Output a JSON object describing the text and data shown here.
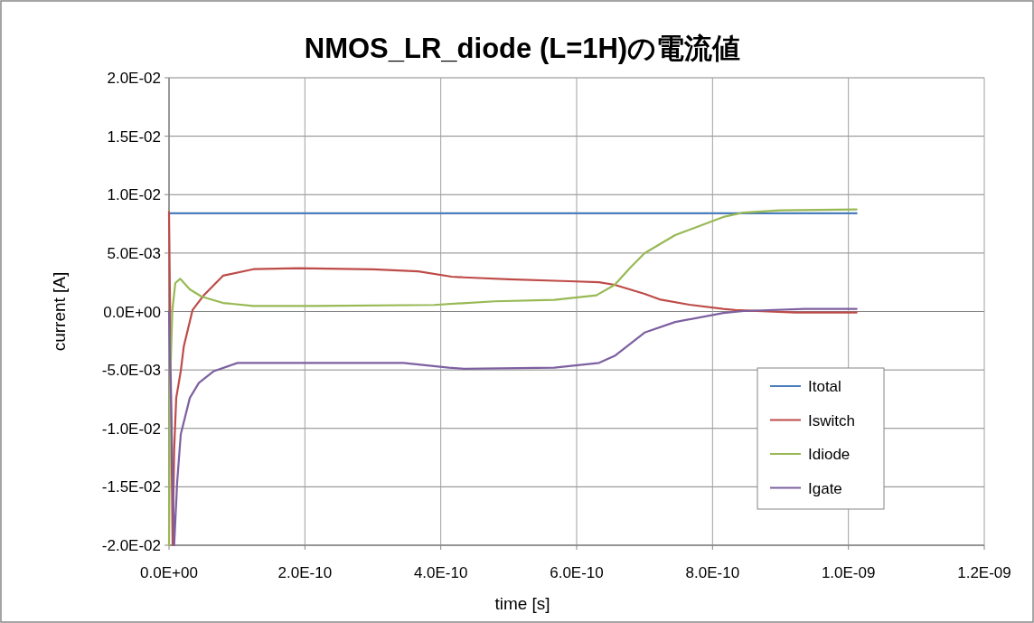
{
  "chart_data": {
    "type": "line",
    "title": "NMOS_LR_diode (L=1H)の電流値",
    "xlabel": "time [s]",
    "ylabel": "current [A]",
    "xlim": [
      0,
      1.2e-09
    ],
    "xticks": [
      {
        "value": 0,
        "label": "0.0E+00"
      },
      {
        "value": 2e-10,
        "label": "2.0E-10"
      },
      {
        "value": 4e-10,
        "label": "4.0E-10"
      },
      {
        "value": 6e-10,
        "label": "6.0E-10"
      },
      {
        "value": 8e-10,
        "label": "8.0E-10"
      },
      {
        "value": 1e-09,
        "label": "1.0E-09"
      },
      {
        "value": 1.2e-09,
        "label": "1.2E-09"
      }
    ],
    "ylim": [
      -0.02,
      0.02
    ],
    "yticks": [
      {
        "value": -0.02,
        "label": "-2.0E-02"
      },
      {
        "value": -0.015,
        "label": "-1.5E-02"
      },
      {
        "value": -0.01,
        "label": "-1.0E-02"
      },
      {
        "value": -0.005,
        "label": "-5.0E-03"
      },
      {
        "value": 0,
        "label": "0.0E+00"
      },
      {
        "value": 0.005,
        "label": "5.0E-03"
      },
      {
        "value": 0.01,
        "label": "1.0E-02"
      },
      {
        "value": 0.015,
        "label": "1.5E-02"
      },
      {
        "value": 0.02,
        "label": "2.0E-02"
      }
    ],
    "grid": true,
    "legend": "bottom right",
    "series": [
      {
        "name": "Itotal",
        "color": "#4a7ebb",
        "x": [
          0,
          1.012e-09
        ],
        "values": [
          0.0084,
          0.0084
        ]
      },
      {
        "name": "Iswitch",
        "color": "#be4b48",
        "x": [
          0,
          5.3e-12,
          7.6e-12,
          1.06e-11,
          1.73e-11,
          2.17e-11,
          3.46e-11,
          5.06e-11,
          7.94e-11,
          1.24e-10,
          1.9e-10,
          3.01e-10,
          3.67e-10,
          4.16e-10,
          4.34e-10,
          5e-10,
          5.89e-10,
          6.33e-10,
          6.56e-10,
          7e-10,
          7.22e-10,
          7.66e-10,
          8.16e-10,
          8.33e-10,
          9.22e-10,
          1.012e-09
        ],
        "values": [
          0.0085,
          -0.02,
          -0.0118,
          -0.0074,
          -0.0051,
          -0.003,
          0.00012,
          0.00135,
          0.00306,
          0.00362,
          0.0037,
          0.0036,
          0.00344,
          0.00298,
          0.00292,
          0.00275,
          0.00259,
          0.00251,
          0.00228,
          0.00151,
          0.00104,
          0.00058,
          0.00022,
          0.00012,
          -9e-05,
          -9e-05
        ]
      },
      {
        "name": "Idiode",
        "color": "#98b954",
        "x": [
          0,
          1.7e-12,
          4.9e-12,
          9.3e-12,
          1.64e-11,
          3.06e-11,
          4.79e-11,
          7.94e-11,
          1.24e-10,
          2.12e-10,
          3.9e-10,
          4.79e-10,
          5.67e-10,
          6.29e-10,
          6.56e-10,
          6.78e-10,
          7e-10,
          7.45e-10,
          8.16e-10,
          8.46e-10,
          8.99e-10,
          1.012e-09
        ],
        "values": [
          -0.02,
          -0.0061,
          0.00012,
          0.00244,
          0.0028,
          0.0019,
          0.00128,
          0.00073,
          0.00048,
          0.00048,
          0.00056,
          0.00087,
          0.00099,
          0.00138,
          0.00228,
          0.0037,
          0.00499,
          0.00654,
          0.00809,
          0.00847,
          0.00865,
          0.00873
        ]
      },
      {
        "name": "Igate",
        "color": "#7d60a0",
        "x": [
          0,
          7.6e-12,
          1.2e-11,
          1.73e-11,
          3.06e-11,
          4.4e-11,
          6.6e-11,
          1.01e-10,
          1.24e-10,
          3.45e-10,
          4.12e-10,
          4.34e-10,
          5.67e-10,
          6.33e-10,
          6.56e-10,
          7e-10,
          7.45e-10,
          8.16e-10,
          8.46e-10,
          9.35e-10,
          1.012e-09
        ],
        "values": [
          0,
          -0.02,
          -0.0146,
          -0.0105,
          -0.0074,
          -0.0061,
          -0.0051,
          -0.0044,
          -0.0044,
          -0.0044,
          -0.0048,
          -0.0049,
          -0.0048,
          -0.0044,
          -0.0038,
          -0.0018,
          -0.0009,
          -0.00012,
          4e-05,
          0.00022,
          0.00022
        ]
      }
    ]
  }
}
